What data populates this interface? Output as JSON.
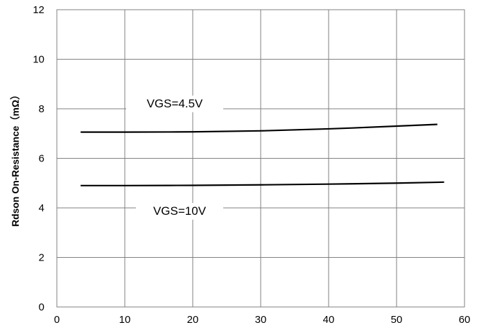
{
  "chart_data": {
    "type": "line",
    "title": "",
    "xlabel": "",
    "ylabel": "Rdson On-Resistance（mΩ）",
    "xlim": [
      0,
      60
    ],
    "ylim": [
      0,
      12
    ],
    "x_ticks": [
      "0",
      "10",
      "20",
      "30",
      "40",
      "50",
      "60"
    ],
    "y_ticks": [
      "0",
      "2",
      "4",
      "6",
      "8",
      "10",
      "12"
    ],
    "grid": true,
    "series": [
      {
        "name": "VGS=4.5V",
        "x": [
          3.5,
          10,
          20,
          30,
          40,
          50,
          56
        ],
        "y": [
          7.06,
          7.06,
          7.07,
          7.11,
          7.19,
          7.3,
          7.37
        ]
      },
      {
        "name": "VGS=10V",
        "x": [
          3.5,
          10,
          20,
          30,
          40,
          50,
          57
        ],
        "y": [
          4.9,
          4.9,
          4.91,
          4.93,
          4.96,
          5.0,
          5.04
        ]
      }
    ]
  }
}
